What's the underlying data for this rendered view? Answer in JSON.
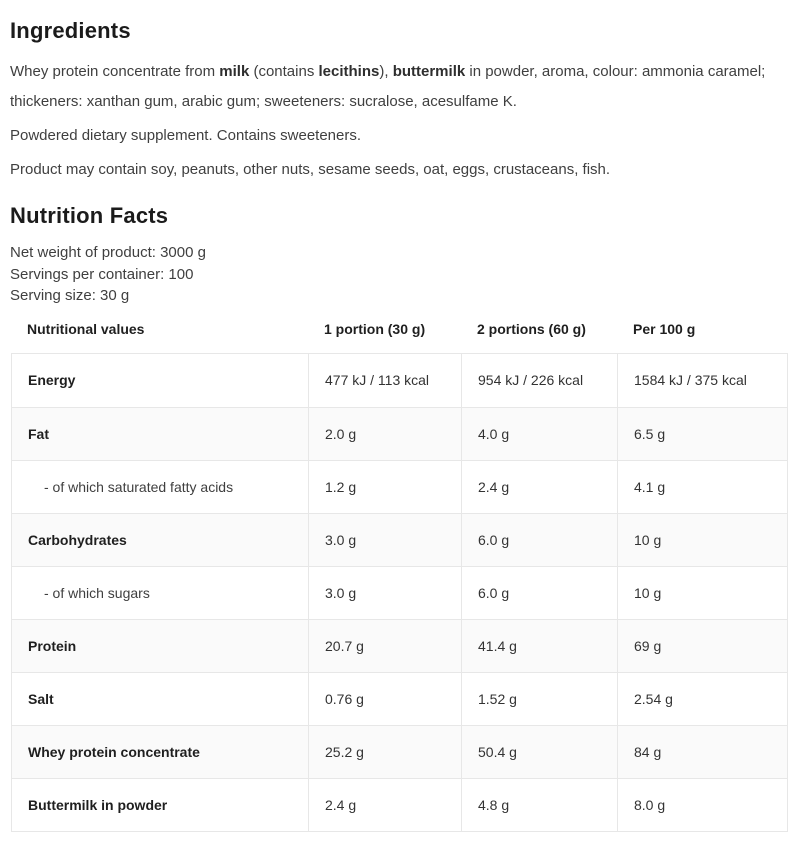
{
  "colors": {
    "heading_text": "#1b1b1b",
    "body_text": "#3f3f3f",
    "table_border": "#e7e7e7",
    "row_stripe": "#fafafa",
    "background": "#ffffff"
  },
  "ingredients": {
    "heading": "Ingredients",
    "description_segments": [
      {
        "text": "Whey protein concentrate from ",
        "bold": false
      },
      {
        "text": "milk",
        "bold": true
      },
      {
        "text": " (contains ",
        "bold": false
      },
      {
        "text": "lecithins",
        "bold": true
      },
      {
        "text": "), ",
        "bold": false
      },
      {
        "text": "buttermilk",
        "bold": true
      },
      {
        "text": " in powder, aroma, colour: ammonia caramel; thickeners: xanthan gum, arabic gum; sweeteners: sucralose, acesulfame K.",
        "bold": false
      }
    ],
    "supplement_note": "Powdered dietary supplement. Contains sweeteners.",
    "allergen_note": "Product may contain soy, peanuts, other nuts, sesame seeds, oat, eggs, crustaceans, fish."
  },
  "nutrition": {
    "heading": "Nutrition Facts",
    "net_weight": "Net weight of product: 3000 g",
    "servings_per_container": "Servings per container: 100",
    "serving_size": "Serving size: 30 g",
    "table": {
      "columns": [
        "Nutritional values",
        "1 portion (30 g)",
        "2 portions (60 g)",
        "Per 100 g"
      ],
      "rows": [
        {
          "label": "Energy",
          "portion1": "477 kJ / 113 kcal",
          "portion2": "954 kJ / 226 kcal",
          "per100": "1584 kJ / 375 kcal",
          "indent": false
        },
        {
          "label": "Fat",
          "portion1": "2.0 g",
          "portion2": "4.0 g",
          "per100": "6.5 g",
          "indent": false
        },
        {
          "label": "- of which saturated fatty acids",
          "portion1": "1.2 g",
          "portion2": "2.4 g",
          "per100": "4.1 g",
          "indent": true
        },
        {
          "label": "Carbohydrates",
          "portion1": "3.0 g",
          "portion2": "6.0 g",
          "per100": "10 g",
          "indent": false
        },
        {
          "label": "- of which sugars",
          "portion1": "3.0 g",
          "portion2": "6.0 g",
          "per100": "10 g",
          "indent": true
        },
        {
          "label": "Protein",
          "portion1": "20.7 g",
          "portion2": "41.4 g",
          "per100": "69 g",
          "indent": false
        },
        {
          "label": "Salt",
          "portion1": "0.76 g",
          "portion2": "1.52 g",
          "per100": "2.54 g",
          "indent": false
        },
        {
          "label": "Whey protein concentrate",
          "portion1": "25.2 g",
          "portion2": "50.4 g",
          "per100": "84 g",
          "indent": false
        },
        {
          "label": "Buttermilk in powder",
          "portion1": "2.4 g",
          "portion2": "4.8 g",
          "per100": "8.0 g",
          "indent": false
        }
      ]
    }
  }
}
